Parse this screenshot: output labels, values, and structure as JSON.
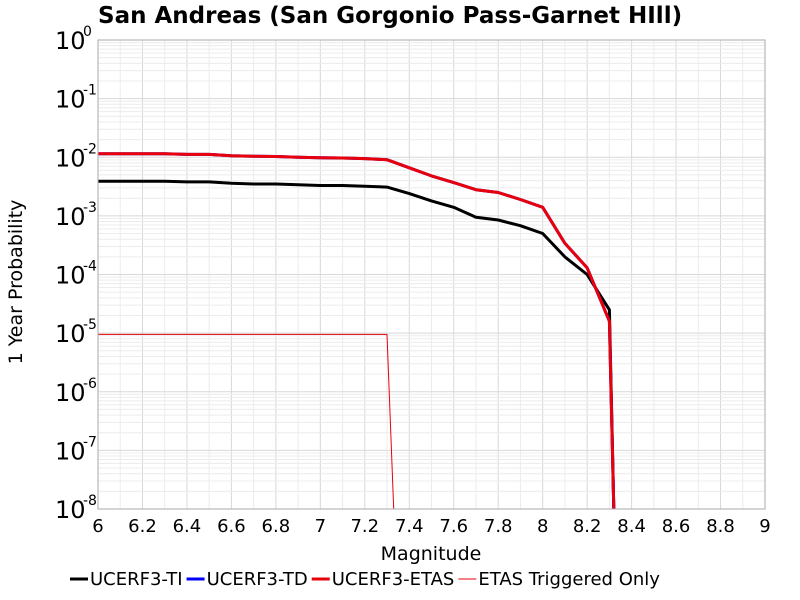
{
  "chart_data": {
    "type": "line",
    "title": "San Andreas (San Gorgonio Pass-Garnet HIll)",
    "xlabel": "Magnitude",
    "ylabel": "1 Year Probability",
    "xlim": [
      6,
      9
    ],
    "ylim_log10": [
      -8,
      0
    ],
    "y_scale": "log",
    "x_ticks": [
      "6",
      "6.2",
      "6.4",
      "6.6",
      "6.8",
      "7",
      "7.2",
      "7.4",
      "7.6",
      "7.8",
      "8",
      "8.2",
      "8.4",
      "8.6",
      "8.8",
      "9"
    ],
    "y_ticks": [
      {
        "base": "10",
        "exp": "0",
        "log": 0
      },
      {
        "base": "10",
        "exp": "-1",
        "log": -1
      },
      {
        "base": "10",
        "exp": "-2",
        "log": -2
      },
      {
        "base": "10",
        "exp": "-3",
        "log": -3
      },
      {
        "base": "10",
        "exp": "-4",
        "log": -4
      },
      {
        "base": "10",
        "exp": "-5",
        "log": -5
      },
      {
        "base": "10",
        "exp": "-6",
        "log": -6
      },
      {
        "base": "10",
        "exp": "-7",
        "log": -7
      },
      {
        "base": "10",
        "exp": "-8",
        "log": -8
      }
    ],
    "grid": true,
    "legend_position": "bottom",
    "series": [
      {
        "name": "UCERF3-TI",
        "color": "#000000",
        "width": 3,
        "points": [
          [
            6.0,
            0.0039
          ],
          [
            6.1,
            0.0039
          ],
          [
            6.2,
            0.0039
          ],
          [
            6.3,
            0.0039
          ],
          [
            6.4,
            0.0038
          ],
          [
            6.5,
            0.0038
          ],
          [
            6.6,
            0.0036
          ],
          [
            6.7,
            0.0035
          ],
          [
            6.8,
            0.0035
          ],
          [
            6.9,
            0.0034
          ],
          [
            7.0,
            0.0033
          ],
          [
            7.1,
            0.0033
          ],
          [
            7.2,
            0.0032
          ],
          [
            7.3,
            0.0031
          ],
          [
            7.4,
            0.0024
          ],
          [
            7.5,
            0.0018
          ],
          [
            7.6,
            0.0014
          ],
          [
            7.7,
            0.00095
          ],
          [
            7.8,
            0.00085
          ],
          [
            7.9,
            0.00068
          ],
          [
            8.0,
            0.0005
          ],
          [
            8.1,
            0.0002
          ],
          [
            8.2,
            0.0001
          ],
          [
            8.3,
            2.5e-05
          ],
          [
            8.32,
            1e-08
          ]
        ]
      },
      {
        "name": "UCERF3-TD",
        "color": "#0000ff",
        "width": 3,
        "points": [
          [
            6.0,
            0.0115
          ],
          [
            6.1,
            0.0115
          ],
          [
            6.2,
            0.0115
          ],
          [
            6.3,
            0.0115
          ],
          [
            6.4,
            0.0112
          ],
          [
            6.5,
            0.0112
          ],
          [
            6.6,
            0.0106
          ],
          [
            6.7,
            0.0104
          ],
          [
            6.8,
            0.0103
          ],
          [
            6.9,
            0.01
          ],
          [
            7.0,
            0.0098
          ],
          [
            7.1,
            0.0097
          ],
          [
            7.2,
            0.0095
          ],
          [
            7.3,
            0.0091
          ],
          [
            7.4,
            0.0066
          ],
          [
            7.5,
            0.0048
          ],
          [
            7.6,
            0.0037
          ],
          [
            7.7,
            0.0028
          ],
          [
            7.8,
            0.0025
          ],
          [
            7.9,
            0.0019
          ],
          [
            8.0,
            0.0014
          ],
          [
            8.1,
            0.00034
          ],
          [
            8.2,
            0.00013
          ],
          [
            8.3,
            1.6e-05
          ],
          [
            8.32,
            1e-08
          ]
        ]
      },
      {
        "name": "UCERF3-ETAS",
        "color": "#e8000b",
        "width": 3,
        "points": [
          [
            6.0,
            0.0115
          ],
          [
            6.1,
            0.0115
          ],
          [
            6.2,
            0.0115
          ],
          [
            6.3,
            0.0115
          ],
          [
            6.4,
            0.0112
          ],
          [
            6.5,
            0.0112
          ],
          [
            6.6,
            0.0106
          ],
          [
            6.7,
            0.0104
          ],
          [
            6.8,
            0.0103
          ],
          [
            6.9,
            0.01
          ],
          [
            7.0,
            0.0098
          ],
          [
            7.1,
            0.0097
          ],
          [
            7.2,
            0.0095
          ],
          [
            7.3,
            0.0091
          ],
          [
            7.4,
            0.0066
          ],
          [
            7.5,
            0.0048
          ],
          [
            7.6,
            0.0037
          ],
          [
            7.7,
            0.0028
          ],
          [
            7.8,
            0.0025
          ],
          [
            7.9,
            0.0019
          ],
          [
            8.0,
            0.0014
          ],
          [
            8.1,
            0.00034
          ],
          [
            8.2,
            0.00013
          ],
          [
            8.3,
            1.6e-05
          ],
          [
            8.32,
            1e-08
          ]
        ]
      },
      {
        "name": "ETAS Triggered Only",
        "color": "#e8000b",
        "width": 1,
        "points": [
          [
            6.0,
            9.5e-06
          ],
          [
            7.3,
            9.5e-06
          ],
          [
            7.33,
            1e-08
          ]
        ]
      }
    ]
  }
}
